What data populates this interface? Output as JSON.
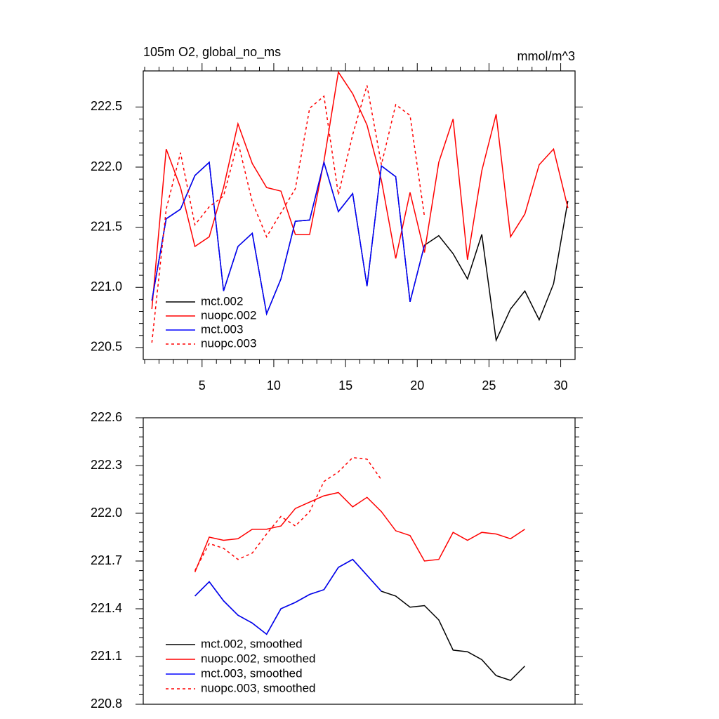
{
  "chart_data": [
    {
      "type": "line",
      "title": "105m O2, global_no_ms",
      "subtitle": "mmol/m^3",
      "x": [
        1.5,
        2.5,
        3.5,
        4.5,
        5.5,
        6.5,
        7.5,
        8.5,
        9.5,
        10.5,
        11.5,
        12.5,
        13.5,
        14.5,
        15.5,
        16.5,
        17.5,
        18.5,
        19.5,
        20.5,
        21.5,
        22.5,
        23.5,
        24.5,
        25.5,
        26.5,
        27.5,
        28.5,
        29.5,
        30.5
      ],
      "xlim": [
        0.9,
        31.0
      ],
      "xticks": [
        5,
        10,
        15,
        20,
        25,
        30
      ],
      "ylim": [
        220.4,
        222.8
      ],
      "yticks": [
        {
          "value": 220.5,
          "label": "220.5"
        },
        {
          "value": 221,
          "label": "221.0"
        },
        {
          "value": 221.5,
          "label": "221.5"
        },
        {
          "value": 222,
          "label": "222.0"
        },
        222.5
      ],
      "legend": "lower left",
      "series": [
        {
          "name": "mct.002",
          "color": "#000000",
          "dash": false,
          "values": [
            220.89,
            221.57,
            221.65,
            221.93,
            222.04,
            220.97,
            221.34,
            221.45,
            220.78,
            221.07,
            221.55,
            221.56,
            222.04,
            221.63,
            221.78,
            221.01,
            222.01,
            221.92,
            220.88,
            221.35,
            221.43,
            221.28,
            221.07,
            221.44,
            220.56,
            220.82,
            220.97,
            220.73,
            221.03,
            221.72
          ]
        },
        {
          "name": "nuopc.002",
          "color": "#ff0000",
          "dash": false,
          "values": [
            220.82,
            222.15,
            221.83,
            221.34,
            221.42,
            221.83,
            222.36,
            222.03,
            221.83,
            221.8,
            221.44,
            221.44,
            222.05,
            222.79,
            222.61,
            222.35,
            221.89,
            221.24,
            221.79,
            221.29,
            222.04,
            222.4,
            221.23,
            221.97,
            222.44,
            221.42,
            221.61,
            222.02,
            222.15,
            221.66
          ]
        },
        {
          "name": "mct.003",
          "color": "#0000ff",
          "dash": false,
          "values": [
            220.89,
            221.57,
            221.65,
            221.93,
            222.04,
            220.97,
            221.34,
            221.45,
            220.78,
            221.07,
            221.55,
            221.56,
            222.04,
            221.63,
            221.78,
            221.01,
            222.01,
            221.92,
            220.88,
            221.35,
            null,
            null,
            null,
            null,
            null,
            null,
            null,
            null,
            null,
            null
          ]
        },
        {
          "name": "nuopc.003",
          "color": "#ff0000",
          "dash": true,
          "values": [
            220.54,
            221.65,
            222.12,
            221.52,
            221.67,
            221.76,
            222.21,
            221.71,
            221.42,
            221.62,
            221.82,
            222.49,
            222.59,
            221.77,
            222.27,
            222.68,
            222.02,
            222.52,
            222.43,
            221.59,
            null,
            null,
            null,
            null,
            null,
            null,
            null,
            null,
            null,
            null
          ]
        }
      ]
    },
    {
      "type": "line",
      "x": [
        4.5,
        5.5,
        6.5,
        7.5,
        8.5,
        9.5,
        10.5,
        11.5,
        12.5,
        13.5,
        14.5,
        15.5,
        16.5,
        17.5,
        18.5,
        19.5,
        20.5,
        21.5,
        22.5,
        23.5,
        24.5,
        25.5,
        26.5,
        27.5
      ],
      "xlim": [
        0.9,
        31.0
      ],
      "ylim": [
        220.8,
        222.6
      ],
      "yticks": [
        {
          "value": 220.8,
          "label": "220.8"
        },
        221.1,
        221.4,
        221.7,
        {
          "value": 222,
          "label": "222.0"
        },
        222.3,
        222.6
      ],
      "legend": "lower left",
      "series": [
        {
          "name": "mct.002, smoothed",
          "color": "#000000",
          "dash": false,
          "values": [
            221.48,
            221.57,
            221.45,
            221.36,
            221.31,
            221.24,
            221.4,
            221.44,
            221.49,
            221.52,
            221.66,
            221.71,
            221.61,
            221.51,
            221.48,
            221.41,
            221.42,
            221.33,
            221.14,
            221.13,
            221.08,
            220.98,
            220.95,
            221.04
          ]
        },
        {
          "name": "nuopc.002, smoothed",
          "color": "#ff0000",
          "dash": false,
          "values": [
            221.63,
            221.85,
            221.83,
            221.84,
            221.9,
            221.9,
            221.92,
            222.03,
            222.07,
            222.11,
            222.13,
            222.04,
            222.1,
            222.01,
            221.89,
            221.86,
            221.7,
            221.71,
            221.88,
            221.83,
            221.88,
            221.87,
            221.84,
            221.9
          ]
        },
        {
          "name": "mct.003, smoothed",
          "color": "#0000ff",
          "dash": false,
          "values": [
            221.48,
            221.57,
            221.45,
            221.36,
            221.31,
            221.24,
            221.4,
            221.44,
            221.49,
            221.52,
            221.66,
            221.71,
            221.61,
            221.51,
            null,
            null,
            null,
            null,
            null,
            null,
            null,
            null,
            null,
            null
          ]
        },
        {
          "name": "nuopc.003, smoothed",
          "color": "#ff0000",
          "dash": true,
          "values": [
            221.64,
            221.81,
            221.78,
            221.71,
            221.75,
            221.87,
            221.98,
            221.92,
            222.01,
            222.2,
            222.26,
            222.35,
            222.34,
            222.21,
            null,
            null,
            null,
            null,
            null,
            null,
            null,
            null,
            null,
            null
          ]
        }
      ]
    }
  ]
}
